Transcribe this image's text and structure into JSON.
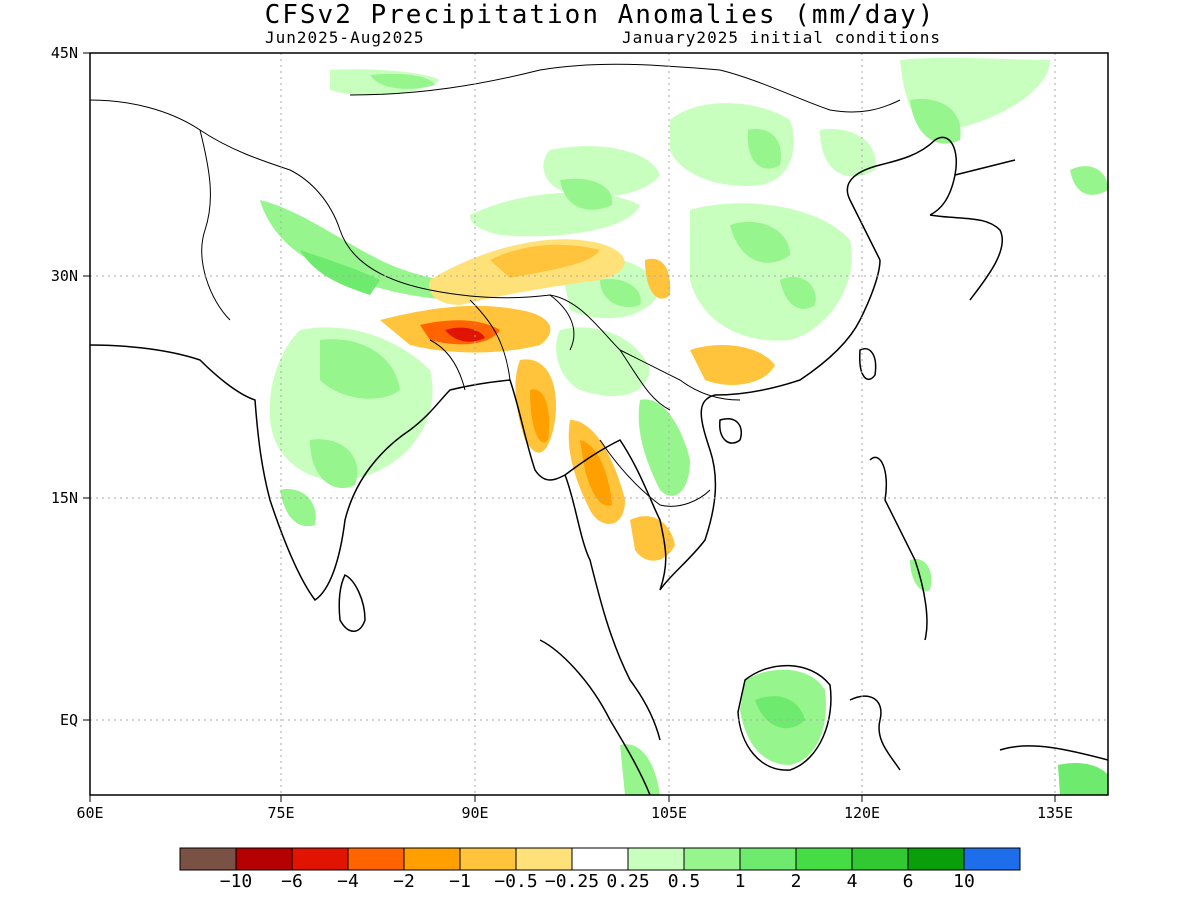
{
  "title": "CFSv2 Precipitation Anomalies (mm/day)",
  "period": "Jun2025-Aug2025",
  "init": "January2025 initial conditions",
  "axes": {
    "x_ticks": [
      "60E",
      "75E",
      "90E",
      "105E",
      "120E",
      "135E"
    ],
    "y_ticks": [
      "45N",
      "30N",
      "15N",
      "EQ"
    ]
  },
  "colorbar": {
    "colors": [
      "#7a5145",
      "#b40000",
      "#e01400",
      "#ff6400",
      "#ffa000",
      "#ffc43c",
      "#ffe17a",
      "#ffffff",
      "#c8ffbe",
      "#96f58c",
      "#6eeb6e",
      "#46dc46",
      "#32c832",
      "#0a9e0a",
      "#1e6eeb"
    ],
    "labels": [
      "-10",
      "-6",
      "-4",
      "-2",
      "-1",
      "-0.5",
      "-0.25",
      "0.25",
      "0.5",
      "1",
      "2",
      "4",
      "6",
      "10"
    ]
  }
}
